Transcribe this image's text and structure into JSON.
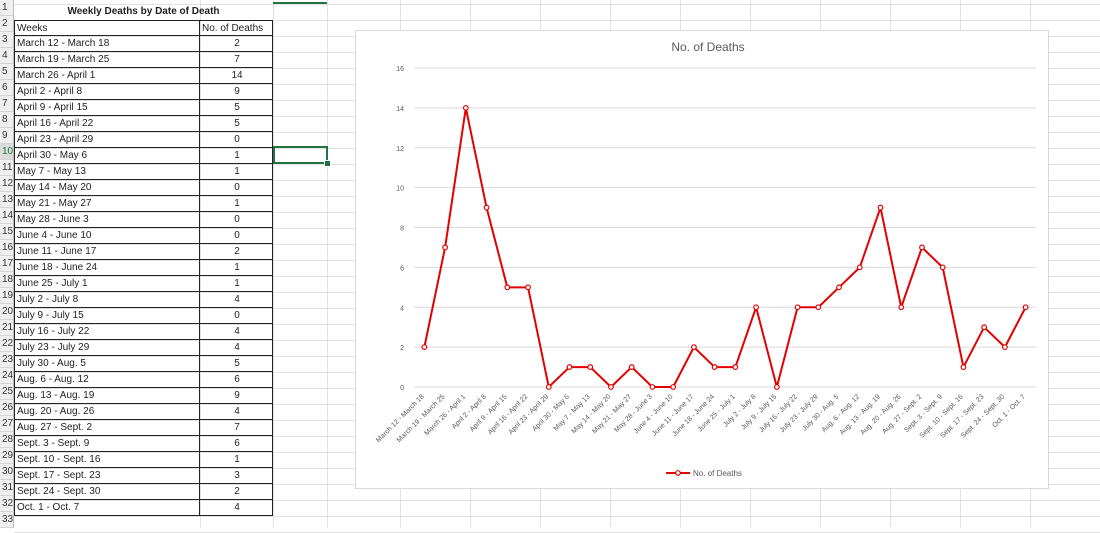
{
  "sheet": {
    "title": "Weekly Deaths by Date of Death",
    "col_headers": [
      "Weeks",
      "No. of Deaths"
    ],
    "row_numbers": [
      "1",
      "2",
      "3",
      "4",
      "5",
      "6",
      "7",
      "8",
      "9",
      "10",
      "11",
      "12",
      "13",
      "14",
      "15",
      "16",
      "17",
      "18",
      "19",
      "20",
      "21",
      "22",
      "23",
      "24",
      "25",
      "26",
      "27",
      "28",
      "29",
      "30",
      "31",
      "32",
      "33"
    ],
    "active_row": "10",
    "rows": [
      {
        "week": "March 12 - March 18",
        "deaths": "2"
      },
      {
        "week": "March 19 - March 25",
        "deaths": "7"
      },
      {
        "week": "March 26 - April 1",
        "deaths": "14"
      },
      {
        "week": "April 2 - April 8",
        "deaths": "9"
      },
      {
        "week": "April 9 - April 15",
        "deaths": "5"
      },
      {
        "week": "April 16 - April 22",
        "deaths": "5"
      },
      {
        "week": "April 23 - April 29",
        "deaths": "0"
      },
      {
        "week": "April 30 - May 6",
        "deaths": "1"
      },
      {
        "week": "May 7 - May 13",
        "deaths": "1"
      },
      {
        "week": "May 14 - May 20",
        "deaths": "0"
      },
      {
        "week": "May 21 - May 27",
        "deaths": "1"
      },
      {
        "week": "May 28 - June 3",
        "deaths": "0"
      },
      {
        "week": "June 4 - June 10",
        "deaths": "0"
      },
      {
        "week": "June 11 - June 17",
        "deaths": "2"
      },
      {
        "week": "June 18 - June 24",
        "deaths": "1"
      },
      {
        "week": "June 25 - July 1",
        "deaths": "1"
      },
      {
        "week": "July 2 - July 8",
        "deaths": "4"
      },
      {
        "week": "July 9 - July 15",
        "deaths": "0"
      },
      {
        "week": "July 16 - July 22",
        "deaths": "4"
      },
      {
        "week": "July 23 - July 29",
        "deaths": "4"
      },
      {
        "week": "July 30 - Aug. 5",
        "deaths": "5"
      },
      {
        "week": "Aug. 6 - Aug. 12",
        "deaths": "6"
      },
      {
        "week": "Aug. 13 - Aug. 19",
        "deaths": "9"
      },
      {
        "week": "Aug. 20 - Aug. 26",
        "deaths": "4"
      },
      {
        "week": "Aug. 27 - Sept. 2",
        "deaths": "7"
      },
      {
        "week": "Sept. 3 - Sept. 9",
        "deaths": "6"
      },
      {
        "week": "Sept. 10 - Sept. 16",
        "deaths": "1"
      },
      {
        "week": "Sept. 17 - Sept. 23",
        "deaths": "3"
      },
      {
        "week": "Sept. 24 - Sept. 30",
        "deaths": "2"
      },
      {
        "week": "Oct. 1 - Oct. 7",
        "deaths": "4"
      }
    ]
  },
  "chart_data": {
    "type": "line",
    "title": "No. of Deaths",
    "xlabel": "",
    "ylabel": "",
    "ylim": [
      0,
      16
    ],
    "yticks": [
      "0",
      "2",
      "4",
      "6",
      "8",
      "10",
      "12",
      "14",
      "16"
    ],
    "grid": true,
    "legend_position": "bottom",
    "categories": [
      "March 12 - March 18",
      "March 19 - March 25",
      "March 26 - April 1",
      "April 2 - April 8",
      "April 9 - April 15",
      "April 16 - April 22",
      "April 23 - April 29",
      "April 30 - May 6",
      "May 7 - May 13",
      "May 14 - May 20",
      "May 21 - May 27",
      "May 28 - June 3",
      "June 4 - June 10",
      "June 11 - June 17",
      "June 18 - June 24",
      "June 25 - July 1",
      "July 2 - July 8",
      "July 9 - July 15",
      "July 16 - July 22",
      "July 23 - July 29",
      "July 30 - Aug. 5",
      "Aug. 6 - Aug. 12",
      "Aug. 13 - Aug. 19",
      "Aug. 20 - Aug. 26",
      "Aug. 27 - Sept. 2",
      "Sept. 3 - Sept. 9",
      "Sept. 10 - Sept. 16",
      "Sept. 17 - Sept. 23",
      "Sept. 24 - Sept. 30",
      "Oct. 1 - Oct. 7"
    ],
    "series": [
      {
        "name": "No. of Deaths",
        "color": "#e30000",
        "values": [
          2,
          7,
          14,
          9,
          5,
          5,
          0,
          1,
          1,
          0,
          1,
          0,
          0,
          2,
          1,
          1,
          4,
          0,
          4,
          4,
          5,
          6,
          9,
          4,
          7,
          6,
          1,
          3,
          2,
          4
        ]
      }
    ]
  },
  "colors": {
    "selection": "#217346",
    "series": "#e30000"
  }
}
